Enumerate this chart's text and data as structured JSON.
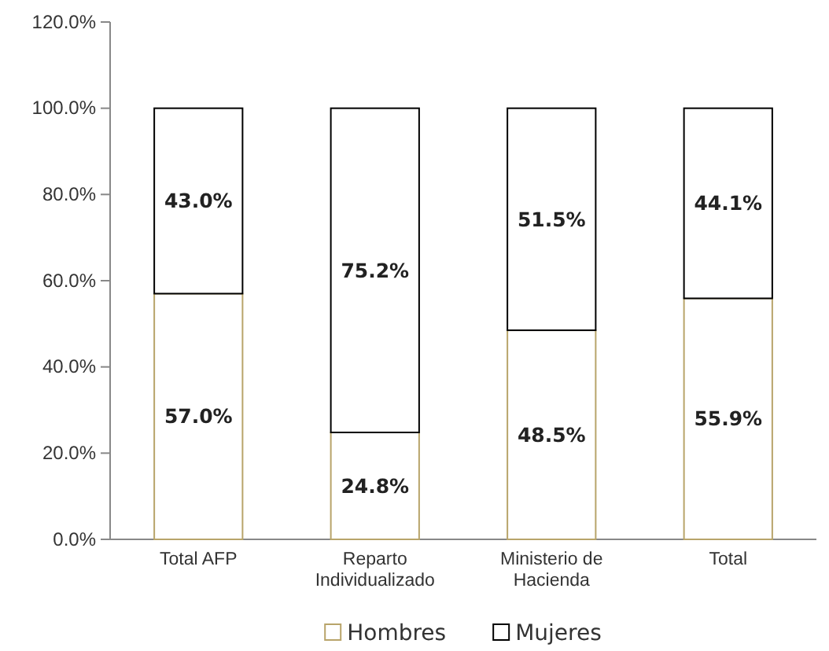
{
  "chart_data": {
    "type": "bar",
    "stacked": true,
    "categories": [
      "Total AFP",
      "Reparto Individualizado",
      "Ministerio de Hacienda",
      "Total"
    ],
    "series": [
      {
        "name": "Hombres",
        "color": "#b8a46a",
        "values": [
          57.0,
          24.8,
          48.5,
          55.9
        ],
        "value_labels": [
          "57.0%",
          "24.8%",
          "48.5%",
          "55.9%"
        ]
      },
      {
        "name": "Mujeres",
        "color": "#000000",
        "values": [
          43.0,
          75.2,
          51.5,
          44.1
        ],
        "value_labels": [
          "43.0%",
          "75.2%",
          "51.5%",
          "44.1%"
        ]
      }
    ],
    "ylim": [
      0,
      120
    ],
    "yticks": [
      {
        "value": 0,
        "label": "0.0%"
      },
      {
        "value": 20,
        "label": "20.0%"
      },
      {
        "value": 40,
        "label": "40.0%"
      },
      {
        "value": 60,
        "label": "60.0%"
      },
      {
        "value": 80,
        "label": "80.0%"
      },
      {
        "value": 100,
        "label": "100.0%"
      },
      {
        "value": 120,
        "label": "120.0%"
      }
    ],
    "grid": false,
    "legend": "bottom"
  }
}
